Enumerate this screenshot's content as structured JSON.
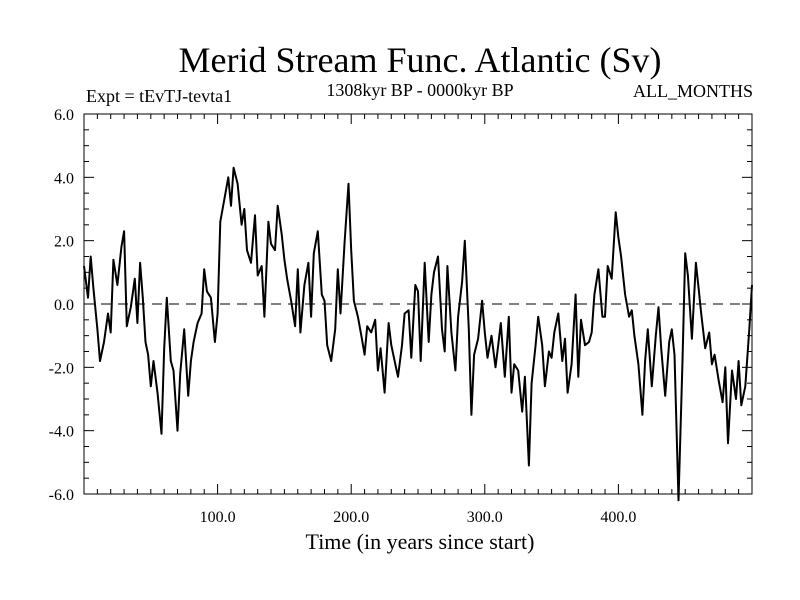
{
  "chart_data": {
    "type": "line",
    "title": "Merid Stream Func. Atlantic (Sv)",
    "subtitle_left": "Expt = tEvTJ-tevta1",
    "subtitle_center": "1308kyr BP - 0000kyr BP",
    "subtitle_right": "ALL_MONTHS",
    "xlabel": "Time (in years since start)",
    "ylabel": "",
    "xlim": [
      0,
      500
    ],
    "ylim": [
      -6.0,
      6.0
    ],
    "xticks": [
      100.0,
      200.0,
      300.0,
      400.0
    ],
    "xtick_labels": [
      "100.0",
      "200.0",
      "300.0",
      "400.0"
    ],
    "yticks": [
      -6.0,
      -4.0,
      -2.0,
      0.0,
      2.0,
      4.0,
      6.0
    ],
    "ytick_labels": [
      "-6.0",
      "-4.0",
      "-2.0",
      "0.0",
      "2.0",
      "4.0",
      "6.0"
    ],
    "reference_line": 0.0,
    "series": [
      {
        "name": "Merid Stream Func. Atlantic",
        "x": [
          0,
          3,
          5,
          7,
          10,
          12,
          15,
          18,
          20,
          22,
          25,
          28,
          30,
          32,
          35,
          38,
          40,
          42,
          44,
          46,
          48,
          50,
          52,
          55,
          58,
          60,
          62,
          65,
          67,
          70,
          72,
          75,
          78,
          80,
          82,
          85,
          88,
          90,
          92,
          95,
          98,
          100,
          102,
          105,
          108,
          110,
          112,
          115,
          118,
          120,
          122,
          125,
          128,
          130,
          133,
          135,
          138,
          140,
          143,
          145,
          148,
          150,
          152,
          155,
          158,
          160,
          162,
          165,
          168,
          170,
          172,
          175,
          178,
          180,
          182,
          185,
          188,
          190,
          192,
          195,
          198,
          200,
          202,
          205,
          208,
          210,
          212,
          215,
          218,
          220,
          222,
          225,
          228,
          230,
          233,
          235,
          238,
          240,
          243,
          245,
          248,
          250,
          252,
          255,
          258,
          260,
          262,
          265,
          268,
          270,
          272,
          275,
          278,
          280,
          283,
          285,
          288,
          290,
          292,
          295,
          298,
          300,
          302,
          305,
          308,
          310,
          312,
          315,
          318,
          320,
          322,
          325,
          328,
          330,
          333,
          335,
          338,
          340,
          343,
          345,
          348,
          350,
          352,
          355,
          358,
          360,
          362,
          365,
          368,
          370,
          372,
          375,
          378,
          380,
          382,
          385,
          388,
          390,
          392,
          395,
          398,
          400,
          402,
          405,
          408,
          410,
          412,
          415,
          418,
          420,
          422,
          425,
          428,
          430,
          432,
          435,
          438,
          440,
          442,
          445,
          448,
          450,
          452,
          455,
          458,
          460,
          462,
          465,
          468,
          470,
          472,
          475,
          478,
          480,
          482,
          485,
          488,
          490,
          492,
          495,
          498,
          500
        ],
        "values": [
          1.2,
          0.2,
          1.5,
          0.5,
          -0.8,
          -1.8,
          -1.2,
          -0.3,
          -0.9,
          1.4,
          0.6,
          1.8,
          2.3,
          -0.7,
          -0.1,
          0.8,
          -0.6,
          1.3,
          0.2,
          -1.2,
          -1.6,
          -2.6,
          -1.8,
          -2.8,
          -4.1,
          -1.4,
          0.2,
          -1.8,
          -2.1,
          -4.0,
          -2.2,
          -0.8,
          -2.9,
          -1.8,
          -1.2,
          -0.6,
          -0.3,
          1.1,
          0.4,
          0.2,
          -1.2,
          -0.3,
          2.6,
          3.3,
          4.0,
          3.1,
          4.3,
          3.8,
          2.5,
          3.0,
          1.7,
          1.3,
          2.8,
          0.9,
          1.2,
          -0.4,
          2.6,
          1.9,
          1.7,
          3.1,
          2.2,
          1.4,
          0.8,
          0.1,
          -0.7,
          1.1,
          -0.9,
          0.6,
          1.3,
          -0.4,
          1.6,
          2.3,
          0.3,
          0.1,
          -1.3,
          -1.8,
          -0.8,
          1.1,
          -0.3,
          1.9,
          3.8,
          1.7,
          0.1,
          -0.4,
          -1.1,
          -1.6,
          -0.7,
          -0.9,
          -0.5,
          -2.1,
          -1.4,
          -2.8,
          -0.6,
          -1.3,
          -1.9,
          -2.3,
          -1.3,
          -0.3,
          -0.2,
          -1.7,
          0.6,
          0.4,
          -1.8,
          1.3,
          -1.2,
          0.3,
          1.0,
          1.5,
          -0.8,
          -1.5,
          1.2,
          -0.9,
          -2.1,
          -0.4,
          0.7,
          2.0,
          -0.8,
          -3.5,
          -1.6,
          -1.1,
          0.1,
          -0.9,
          -1.7,
          -1.0,
          -2.0,
          -1.3,
          -0.6,
          -2.3,
          -0.4,
          -2.8,
          -1.9,
          -2.1,
          -3.4,
          -2.3,
          -5.1,
          -2.5,
          -1.3,
          -0.4,
          -1.3,
          -2.6,
          -1.5,
          -1.7,
          -0.9,
          -0.3,
          -1.8,
          -1.1,
          -2.8,
          -1.9,
          0.3,
          -2.3,
          -0.5,
          -1.3,
          -1.2,
          -0.9,
          0.3,
          1.1,
          -0.4,
          -0.4,
          1.2,
          0.8,
          2.9,
          2.1,
          1.5,
          0.3,
          -0.4,
          -0.2,
          -1.0,
          -1.9,
          -3.5,
          -1.8,
          -0.8,
          -2.6,
          -1.0,
          -0.1,
          -1.4,
          -2.9,
          -1.2,
          -0.8,
          -1.6,
          -6.2,
          -1.8,
          1.6,
          0.9,
          -1.1,
          1.3,
          0.5,
          -0.3,
          -1.4,
          -0.9,
          -1.9,
          -1.6,
          -2.4,
          -3.1,
          -2.0,
          -4.4,
          -2.1,
          -3.0,
          -1.8,
          -3.2,
          -2.6,
          -0.8,
          0.6
        ]
      }
    ]
  }
}
